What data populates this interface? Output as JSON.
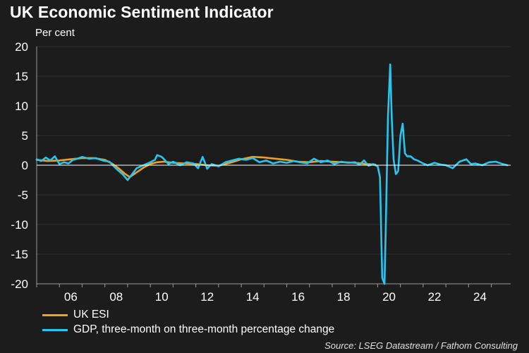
{
  "title": "UK Economic Sentiment Indicator",
  "subtitle": "Per cent",
  "source": "Source: LSEG Datastream / Fathom Consulting",
  "colors": {
    "background": "#1c1c1c",
    "esi": "#f0a020",
    "gdp": "#26c6f0",
    "zero_line": "#ffffff",
    "grid": "#2e2e2e"
  },
  "chart_data": {
    "type": "line",
    "xlim": [
      2005.0,
      2025.85
    ],
    "ylim": [
      -20,
      20
    ],
    "x_ticks": [
      2006,
      2008,
      2010,
      2012,
      2014,
      2016,
      2018,
      2020,
      2022,
      2024
    ],
    "x_tick_labels": [
      "06",
      "08",
      "10",
      "12",
      "14",
      "16",
      "18",
      "20",
      "22",
      "24"
    ],
    "y_ticks": [
      20,
      15,
      10,
      5,
      0,
      -5,
      -10,
      -15,
      -20
    ],
    "y_tick_labels": [
      "20",
      "15",
      "10",
      "5",
      "0",
      "-5",
      "-10",
      "-15",
      "-20"
    ],
    "grid": true,
    "legend": "bottom-left",
    "series": [
      {
        "name": "UK ESI",
        "color": "#f0a020",
        "x": [
          2005.0,
          2005.5,
          2006.0,
          2006.5,
          2007.0,
          2007.5,
          2008.0,
          2008.3,
          2008.6,
          2008.9,
          2009.1,
          2009.4,
          2009.7,
          2010.0,
          2010.3,
          2010.6,
          2011.0,
          2011.5,
          2012.0,
          2012.5,
          2013.0,
          2013.5,
          2014.0,
          2014.5,
          2015.0,
          2015.5,
          2016.0,
          2016.5,
          2017.0,
          2017.5,
          2018.0,
          2018.5,
          2019.0,
          2019.5,
          2019.9
        ],
        "y": [
          0.9,
          0.7,
          0.8,
          1.0,
          1.2,
          1.2,
          0.9,
          0.3,
          -0.5,
          -1.5,
          -2.0,
          -1.2,
          -0.4,
          0.2,
          0.5,
          0.6,
          0.4,
          0.3,
          0.2,
          0.0,
          -0.1,
          0.4,
          1.0,
          1.4,
          1.3,
          1.1,
          0.9,
          0.6,
          0.5,
          0.7,
          0.6,
          0.5,
          0.4,
          0.2,
          0.1
        ]
      },
      {
        "name": "GDP, three-month on three-month percentage change",
        "color": "#26c6f0",
        "x": [
          2005.0,
          2005.2,
          2005.4,
          2005.6,
          2005.8,
          2006.0,
          2006.2,
          2006.4,
          2006.6,
          2006.8,
          2007.0,
          2007.3,
          2007.6,
          2007.9,
          2008.2,
          2008.5,
          2008.8,
          2009.0,
          2009.2,
          2009.4,
          2009.7,
          2010.0,
          2010.2,
          2010.3,
          2010.5,
          2010.8,
          2011.0,
          2011.3,
          2011.6,
          2011.9,
          2012.1,
          2012.3,
          2012.5,
          2012.7,
          2013.0,
          2013.3,
          2013.6,
          2013.9,
          2014.2,
          2014.5,
          2014.8,
          2015.1,
          2015.4,
          2015.7,
          2016.0,
          2016.3,
          2016.6,
          2016.9,
          2017.2,
          2017.5,
          2017.8,
          2018.1,
          2018.4,
          2018.7,
          2019.0,
          2019.2,
          2019.4,
          2019.6,
          2019.8,
          2020.0,
          2020.1,
          2020.2,
          2020.3,
          2020.35,
          2020.45,
          2020.55,
          2020.62,
          2020.7,
          2020.8,
          2020.9,
          2021.0,
          2021.1,
          2021.2,
          2021.3,
          2021.45,
          2021.6,
          2021.75,
          2022.0,
          2022.2,
          2022.5,
          2022.8,
          2023.0,
          2023.3,
          2023.6,
          2023.9,
          2024.1,
          2024.3,
          2024.6,
          2024.9,
          2025.2,
          2025.5,
          2025.7
        ],
        "y": [
          1.0,
          0.7,
          1.3,
          0.8,
          1.5,
          0.2,
          0.5,
          0.3,
          0.9,
          1.1,
          1.4,
          1.1,
          1.2,
          0.8,
          0.6,
          -0.6,
          -1.6,
          -2.5,
          -1.5,
          -0.5,
          0.0,
          0.5,
          0.9,
          1.7,
          1.4,
          0.2,
          0.6,
          0.0,
          0.5,
          0.3,
          -0.5,
          1.4,
          -0.6,
          0.2,
          -0.2,
          0.5,
          0.8,
          1.1,
          0.9,
          1.2,
          0.5,
          0.8,
          0.3,
          0.6,
          0.4,
          0.7,
          0.5,
          0.3,
          1.1,
          0.5,
          0.8,
          0.2,
          0.6,
          0.4,
          0.5,
          0.1,
          0.8,
          -0.1,
          0.2,
          -0.2,
          -2.0,
          -19.0,
          -20.0,
          -12.0,
          8.0,
          17.0,
          8.0,
          1.0,
          -1.5,
          -1.0,
          5.0,
          7.0,
          2.0,
          1.5,
          1.5,
          1.0,
          0.8,
          0.3,
          0.0,
          0.4,
          0.1,
          0.0,
          -0.5,
          0.6,
          1.0,
          0.2,
          0.3,
          0.0,
          0.5,
          0.6,
          0.2,
          0.0
        ]
      }
    ]
  }
}
